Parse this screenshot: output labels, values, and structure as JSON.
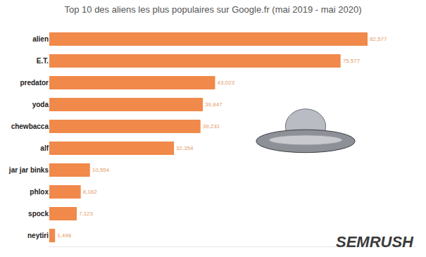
{
  "chart_data": {
    "type": "bar",
    "orientation": "horizontal",
    "title": "Top 10 des aliens les plus populaires sur Google.fr (mai 2019 - mai 2020)",
    "categories": [
      "alien",
      "E.T.",
      "predator",
      "yoda",
      "chewbacca",
      "alf",
      "jar jar binks",
      "phlox",
      "spock",
      "neytiri"
    ],
    "values": [
      82577,
      75577,
      43023,
      39847,
      39231,
      32354,
      10554,
      8162,
      7123,
      1498
    ],
    "value_labels": [
      "82,577",
      "75,577",
      "43,023",
      "39,847",
      "39,231",
      "32,354",
      "10,554",
      "8,162",
      "7,123",
      "1,498"
    ],
    "data_labels": true,
    "color": "#f0894a",
    "xlim": [
      0,
      95000
    ],
    "grid": false,
    "tick_labels": "y",
    "annotations": [
      "SEMRUSH"
    ]
  }
}
